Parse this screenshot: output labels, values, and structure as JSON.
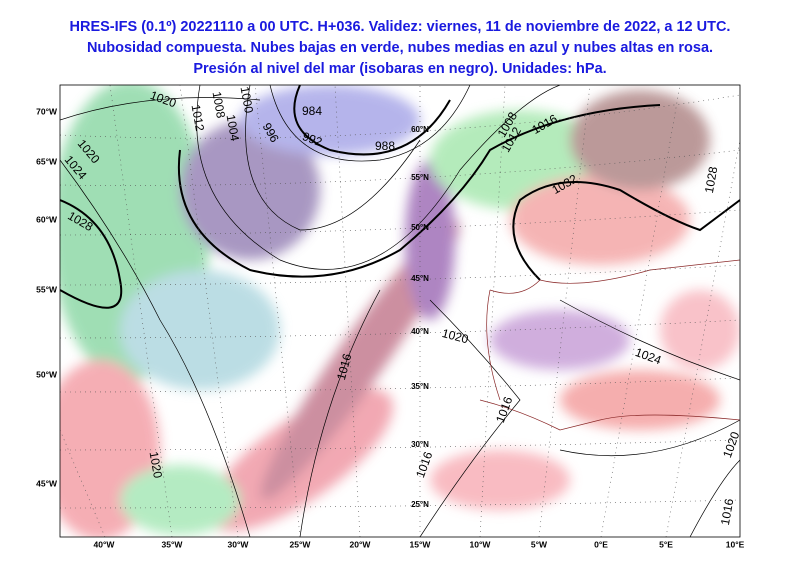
{
  "header": {
    "lines": [
      "HRES-IFS (0.1º) 20221110 a 00 UTC. H+036. Validez: viernes, 11 de noviembre de 2022, a 12 UTC.",
      "Nubosidad compuesta. Nubes bajas en verde, nubes medias en azul y nubes altas en rosa.",
      "Presión al nivel del mar (isobaras en negro). Unidades: hPa."
    ]
  },
  "map": {
    "left_labels": [
      "70°W",
      "65°W",
      "60°W",
      "55°W",
      "50°W",
      "45°W"
    ],
    "bottom_labels": [
      "40°W",
      "35°W",
      "30°W",
      "25°W",
      "20°W",
      "15°W",
      "10°W",
      "5°W",
      "0°E",
      "5°E",
      "10°E"
    ],
    "lat_labels": [
      "60°N",
      "55°N",
      "50°N",
      "45°N",
      "40°N",
      "35°N",
      "30°N",
      "25°N"
    ],
    "isobar_labels": [
      "1020",
      "1008",
      "1012",
      "1004",
      "1000",
      "996",
      "992",
      "988",
      "984",
      "1020",
      "1024",
      "1028",
      "1016",
      "1020",
      "1008",
      "1012",
      "1016",
      "1032",
      "1028",
      "1024",
      "1016",
      "1016",
      "1020",
      "1020",
      "1016"
    ]
  }
}
